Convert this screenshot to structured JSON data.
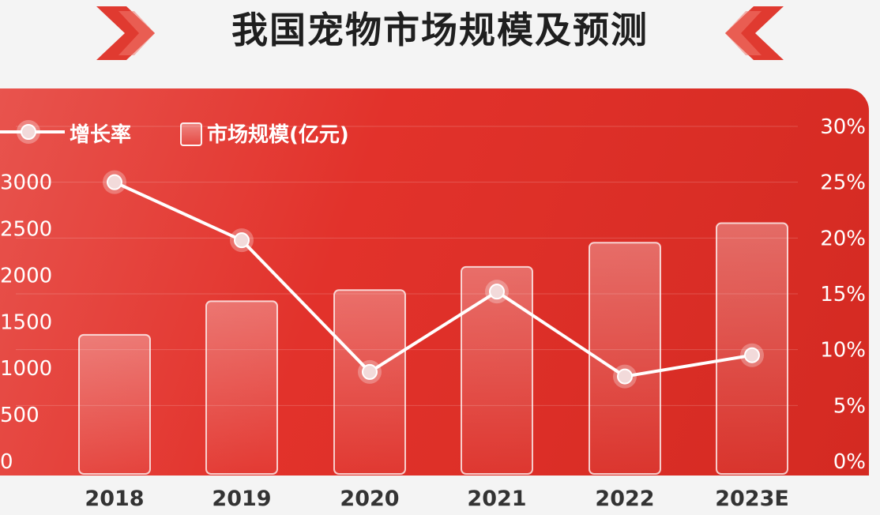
{
  "title": "我国宠物市场规模及预测",
  "colors": {
    "panel": "#e2322b",
    "title": "#1f1f1f",
    "line": "#ffffff",
    "xlabel": "#333333"
  },
  "icons": [
    "chevron-right-deco-icon",
    "chevron-left-deco-icon"
  ],
  "chart_data": {
    "type": "bar",
    "categories": [
      "2018",
      "2019",
      "2020",
      "2021",
      "2022",
      "2023E"
    ],
    "series": [
      {
        "name": "市场规模(亿元)",
        "type": "bar",
        "axis": "left",
        "values": [
          1360,
          1720,
          1840,
          2090,
          2350,
          2560
        ]
      },
      {
        "name": "增长率",
        "type": "line",
        "axis": "right",
        "values": [
          25.0,
          19.8,
          8.0,
          15.2,
          7.6,
          9.5
        ]
      }
    ],
    "y_left": {
      "ticks": [
        "0",
        "500",
        "1000",
        "1500",
        "2000",
        "2500",
        "3000"
      ],
      "ylim": [
        0,
        3000
      ]
    },
    "y_right": {
      "ticks": [
        "0%",
        "5%",
        "10%",
        "15%",
        "20%",
        "25%",
        "30%"
      ],
      "ylim": [
        0,
        30
      ]
    },
    "legend": {
      "line_label": "增长率",
      "bar_label": "市场规模(亿元)",
      "placement": "top-left"
    },
    "grid": true
  }
}
